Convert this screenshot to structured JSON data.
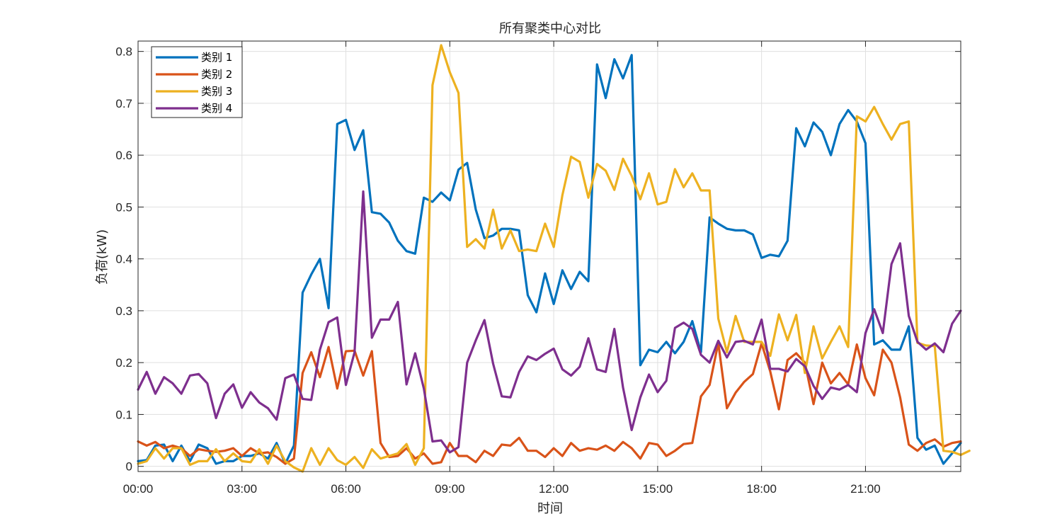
{
  "chart_data": {
    "type": "line",
    "title": "所有聚类中心对比",
    "xlabel": "时间",
    "ylabel": "负荷(kW)",
    "xlim": [
      0,
      95
    ],
    "ylim": [
      -0.01,
      0.82
    ],
    "x_ticks": [
      0,
      12,
      24,
      36,
      48,
      60,
      72,
      84
    ],
    "x_tick_labels": [
      "00:00",
      "03:00",
      "06:00",
      "09:00",
      "12:00",
      "15:00",
      "18:00",
      "21:00"
    ],
    "y_ticks": [
      0,
      0.1,
      0.2,
      0.3,
      0.4,
      0.5,
      0.6,
      0.7,
      0.8
    ],
    "y_tick_labels": [
      "0",
      "0.1",
      "0.2",
      "0.3",
      "0.4",
      "0.5",
      "0.6",
      "0.7",
      "0.8"
    ],
    "grid": true,
    "legend_position": "top-left",
    "x_interval_minutes": 15,
    "series": [
      {
        "name": "类别 1",
        "color": "#0072BD",
        "values": [
          0.01,
          0.012,
          0.04,
          0.042,
          0.01,
          0.04,
          0.01,
          0.042,
          0.035,
          0.005,
          0.01,
          0.01,
          0.02,
          0.02,
          0.025,
          0.015,
          0.045,
          0.005,
          0.04,
          0.335,
          0.37,
          0.4,
          0.305,
          0.66,
          0.668,
          0.61,
          0.648,
          0.49,
          0.487,
          0.47,
          0.435,
          0.415,
          0.41,
          0.518,
          0.51,
          0.528,
          0.513,
          0.572,
          0.585,
          0.495,
          0.44,
          0.445,
          0.458,
          0.458,
          0.455,
          0.33,
          0.297,
          0.372,
          0.313,
          0.378,
          0.342,
          0.375,
          0.357,
          0.775,
          0.71,
          0.785,
          0.748,
          0.793,
          0.195,
          0.225,
          0.22,
          0.24,
          0.218,
          0.24,
          0.28,
          0.22,
          0.48,
          0.468,
          0.458,
          0.455,
          0.455,
          0.447,
          0.402,
          0.408,
          0.405,
          0.435,
          0.652,
          0.617,
          0.663,
          0.645,
          0.6,
          0.66,
          0.687,
          0.665,
          0.623,
          0.235,
          0.243,
          0.225,
          0.225,
          0.27,
          0.055,
          0.032,
          0.04,
          0.005,
          0.025,
          0.045
        ]
      },
      {
        "name": "类别 2",
        "color": "#D95319",
        "values": [
          0.048,
          0.04,
          0.047,
          0.035,
          0.04,
          0.035,
          0.02,
          0.033,
          0.03,
          0.028,
          0.03,
          0.035,
          0.02,
          0.035,
          0.025,
          0.027,
          0.018,
          0.005,
          0.015,
          0.18,
          0.22,
          0.172,
          0.23,
          0.15,
          0.222,
          0.223,
          0.175,
          0.222,
          0.045,
          0.018,
          0.02,
          0.035,
          0.015,
          0.025,
          0.005,
          0.008,
          0.045,
          0.02,
          0.02,
          0.008,
          0.03,
          0.02,
          0.042,
          0.04,
          0.055,
          0.03,
          0.03,
          0.018,
          0.035,
          0.02,
          0.045,
          0.03,
          0.035,
          0.032,
          0.04,
          0.03,
          0.047,
          0.035,
          0.015,
          0.045,
          0.042,
          0.02,
          0.03,
          0.043,
          0.045,
          0.135,
          0.157,
          0.238,
          0.112,
          0.142,
          0.163,
          0.178,
          0.237,
          0.183,
          0.11,
          0.205,
          0.218,
          0.2,
          0.12,
          0.2,
          0.16,
          0.18,
          0.158,
          0.235,
          0.17,
          0.137,
          0.225,
          0.2,
          0.133,
          0.042,
          0.03,
          0.045,
          0.052,
          0.038,
          0.045,
          0.048
        ]
      },
      {
        "name": "类别 3",
        "color": "#EDB120",
        "values": [
          0.005,
          0.01,
          0.035,
          0.015,
          0.035,
          0.035,
          0.003,
          0.01,
          0.01,
          0.033,
          0.01,
          0.025,
          0.01,
          0.008,
          0.033,
          0.005,
          0.04,
          0.01,
          -0.002,
          -0.01,
          0.035,
          0.003,
          0.035,
          0.012,
          0.003,
          0.018,
          -0.003,
          0.033,
          0.015,
          0.02,
          0.025,
          0.043,
          0.003,
          0.035,
          0.735,
          0.812,
          0.76,
          0.72,
          0.423,
          0.438,
          0.42,
          0.495,
          0.42,
          0.455,
          0.415,
          0.418,
          0.415,
          0.468,
          0.423,
          0.523,
          0.597,
          0.587,
          0.518,
          0.583,
          0.57,
          0.533,
          0.593,
          0.56,
          0.515,
          0.565,
          0.505,
          0.51,
          0.573,
          0.538,
          0.565,
          0.532,
          0.532,
          0.285,
          0.22,
          0.29,
          0.24,
          0.24,
          0.24,
          0.213,
          0.293,
          0.243,
          0.292,
          0.18,
          0.27,
          0.208,
          0.24,
          0.27,
          0.23,
          0.675,
          0.665,
          0.693,
          0.66,
          0.63,
          0.66,
          0.665,
          0.238,
          0.233,
          0.232,
          0.03,
          0.028,
          0.022,
          0.03
        ]
      },
      {
        "name": "类别 4",
        "color": "#7E2F8E",
        "values": [
          0.148,
          0.182,
          0.14,
          0.172,
          0.16,
          0.14,
          0.175,
          0.178,
          0.16,
          0.093,
          0.14,
          0.158,
          0.113,
          0.143,
          0.123,
          0.112,
          0.09,
          0.17,
          0.177,
          0.13,
          0.128,
          0.225,
          0.278,
          0.287,
          0.157,
          0.22,
          0.53,
          0.248,
          0.283,
          0.283,
          0.317,
          0.158,
          0.218,
          0.15,
          0.048,
          0.05,
          0.027,
          0.037,
          0.2,
          0.243,
          0.282,
          0.198,
          0.135,
          0.133,
          0.182,
          0.212,
          0.205,
          0.217,
          0.227,
          0.187,
          0.175,
          0.192,
          0.247,
          0.187,
          0.182,
          0.265,
          0.152,
          0.07,
          0.133,
          0.177,
          0.143,
          0.165,
          0.267,
          0.277,
          0.265,
          0.215,
          0.2,
          0.242,
          0.21,
          0.24,
          0.242,
          0.235,
          0.283,
          0.188,
          0.188,
          0.183,
          0.207,
          0.193,
          0.155,
          0.13,
          0.152,
          0.148,
          0.157,
          0.143,
          0.257,
          0.303,
          0.257,
          0.39,
          0.43,
          0.29,
          0.24,
          0.225,
          0.237,
          0.22,
          0.275,
          0.3
        ]
      }
    ]
  }
}
